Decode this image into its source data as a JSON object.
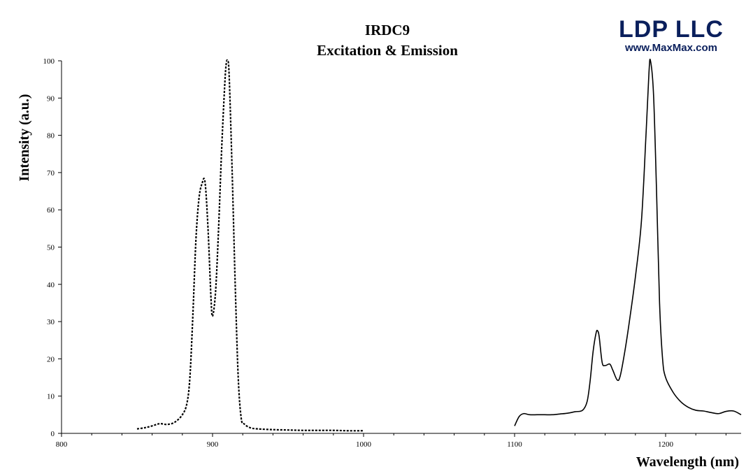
{
  "logo": {
    "name": "LDP LLC",
    "url": "www.MaxMax.com",
    "color": "#0a1f5c"
  },
  "chart_data": {
    "type": "line",
    "title": "IRDC9",
    "subtitle": "Excitation & Emission",
    "xlabel": "Wavelength (nm)",
    "ylabel": "Intensity (a.u.)",
    "xlim": [
      800,
      1250
    ],
    "ylim": [
      0,
      100
    ],
    "x_ticks": [
      800,
      900,
      1000,
      1100,
      1200
    ],
    "y_ticks": [
      0,
      10,
      20,
      30,
      40,
      50,
      60,
      70,
      80,
      90,
      100
    ],
    "grid": false,
    "legend": "none",
    "series": [
      {
        "style": "dashed",
        "color": "#000000",
        "x": [
          850,
          855,
          860,
          865,
          870,
          875,
          880,
          883,
          885,
          887,
          889,
          891,
          893,
          895,
          897,
          899,
          900,
          902,
          904,
          906,
          908,
          909,
          910,
          911,
          913,
          915,
          917,
          919,
          921,
          925,
          930,
          940,
          950,
          960,
          970,
          980,
          990,
          1000
        ],
        "y": [
          1.2,
          1.5,
          2.0,
          2.6,
          2.4,
          3.0,
          5.0,
          8.0,
          15.0,
          32.0,
          52.0,
          63.0,
          67.0,
          67.5,
          55.0,
          36.0,
          31.5,
          38.0,
          55.0,
          76.0,
          93.0,
          99.0,
          100.0,
          96.0,
          70.0,
          40.0,
          15.0,
          4.0,
          2.5,
          1.5,
          1.2,
          1.0,
          0.9,
          0.8,
          0.8,
          0.8,
          0.7,
          0.7
        ]
      },
      {
        "style": "solid",
        "color": "#000000",
        "x": [
          1100,
          1103,
          1106,
          1110,
          1115,
          1120,
          1125,
          1130,
          1135,
          1140,
          1145,
          1148,
          1150,
          1152,
          1154,
          1155,
          1156,
          1158,
          1160,
          1163,
          1165,
          1168,
          1170,
          1173,
          1176,
          1180,
          1184,
          1187,
          1189,
          1190,
          1192,
          1194,
          1196,
          1198,
          1200,
          1205,
          1210,
          1215,
          1220,
          1225,
          1230,
          1235,
          1240,
          1245,
          1250
        ],
        "y": [
          2.0,
          4.5,
          5.3,
          5.0,
          5.0,
          5.0,
          5.0,
          5.2,
          5.4,
          5.8,
          6.2,
          8.5,
          14.0,
          22.0,
          27.0,
          27.5,
          26.0,
          19.0,
          18.2,
          18.6,
          17.0,
          14.3,
          15.5,
          22.0,
          30.0,
          42.0,
          57.0,
          80.0,
          97.0,
          100.0,
          91.0,
          65.0,
          35.0,
          20.0,
          15.0,
          11.0,
          8.5,
          7.0,
          6.2,
          6.0,
          5.6,
          5.3,
          5.9,
          6.0,
          5.0
        ]
      }
    ]
  }
}
